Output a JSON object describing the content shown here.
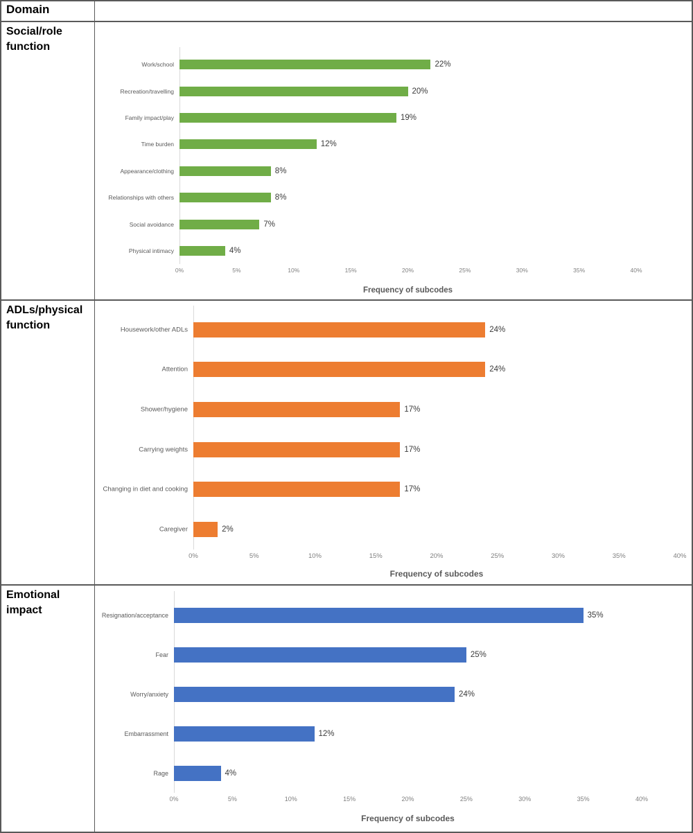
{
  "table": {
    "header": {
      "domain_label": "Domain"
    },
    "rows": [
      {
        "domain": "Social/role function"
      },
      {
        "domain": "ADLs/physical function"
      },
      {
        "domain": "Emotional impact"
      }
    ]
  },
  "chart_data": [
    {
      "type": "bar",
      "orientation": "horizontal",
      "title": "",
      "color": "#70AD47",
      "categories": [
        "Work/school",
        "Recreation/travelling",
        "Family impact/play",
        "Time burden",
        "Appearance/clothing",
        "Relationships with others",
        "Social avoidance",
        "Physical intimacy"
      ],
      "values": [
        22,
        20,
        19,
        12,
        8,
        8,
        7,
        4
      ],
      "value_labels": [
        "22%",
        "20%",
        "19%",
        "12%",
        "8%",
        "8%",
        "7%",
        "4%"
      ],
      "xlabel": "Frequency of subcodes",
      "xlim": [
        0,
        40
      ],
      "xticks": [
        "0%",
        "5%",
        "10%",
        "15%",
        "20%",
        "25%",
        "30%",
        "35%",
        "40%"
      ],
      "grid": false,
      "legend": "none"
    },
    {
      "type": "bar",
      "orientation": "horizontal",
      "title": "",
      "color": "#ED7D31",
      "categories": [
        "Housework/other ADLs",
        "Attention",
        "Shower/hygiene",
        "Carrying weights",
        "Changing in diet and cooking",
        "Caregiver"
      ],
      "values": [
        24,
        24,
        17,
        17,
        17,
        2
      ],
      "value_labels": [
        "24%",
        "24%",
        "17%",
        "17%",
        "17%",
        "2%"
      ],
      "xlabel": "Frequency of subcodes",
      "xlim": [
        0,
        40
      ],
      "xticks": [
        "0%",
        "5%",
        "10%",
        "15%",
        "20%",
        "25%",
        "30%",
        "35%",
        "40%"
      ],
      "grid": false,
      "legend": "none"
    },
    {
      "type": "bar",
      "orientation": "horizontal",
      "title": "",
      "color": "#4472C4",
      "categories": [
        "Resignation/acceptance",
        "Fear",
        "Worry/anxiety",
        "Embarrassment",
        "Rage"
      ],
      "values": [
        35,
        25,
        24,
        12,
        4
      ],
      "value_labels": [
        "35%",
        "25%",
        "24%",
        "12%",
        "4%"
      ],
      "xlabel": "Frequency of subcodes",
      "xlim": [
        0,
        40
      ],
      "xticks": [
        "0%",
        "5%",
        "10%",
        "15%",
        "20%",
        "25%",
        "30%",
        "35%",
        "40%"
      ],
      "grid": false,
      "legend": "none"
    }
  ]
}
